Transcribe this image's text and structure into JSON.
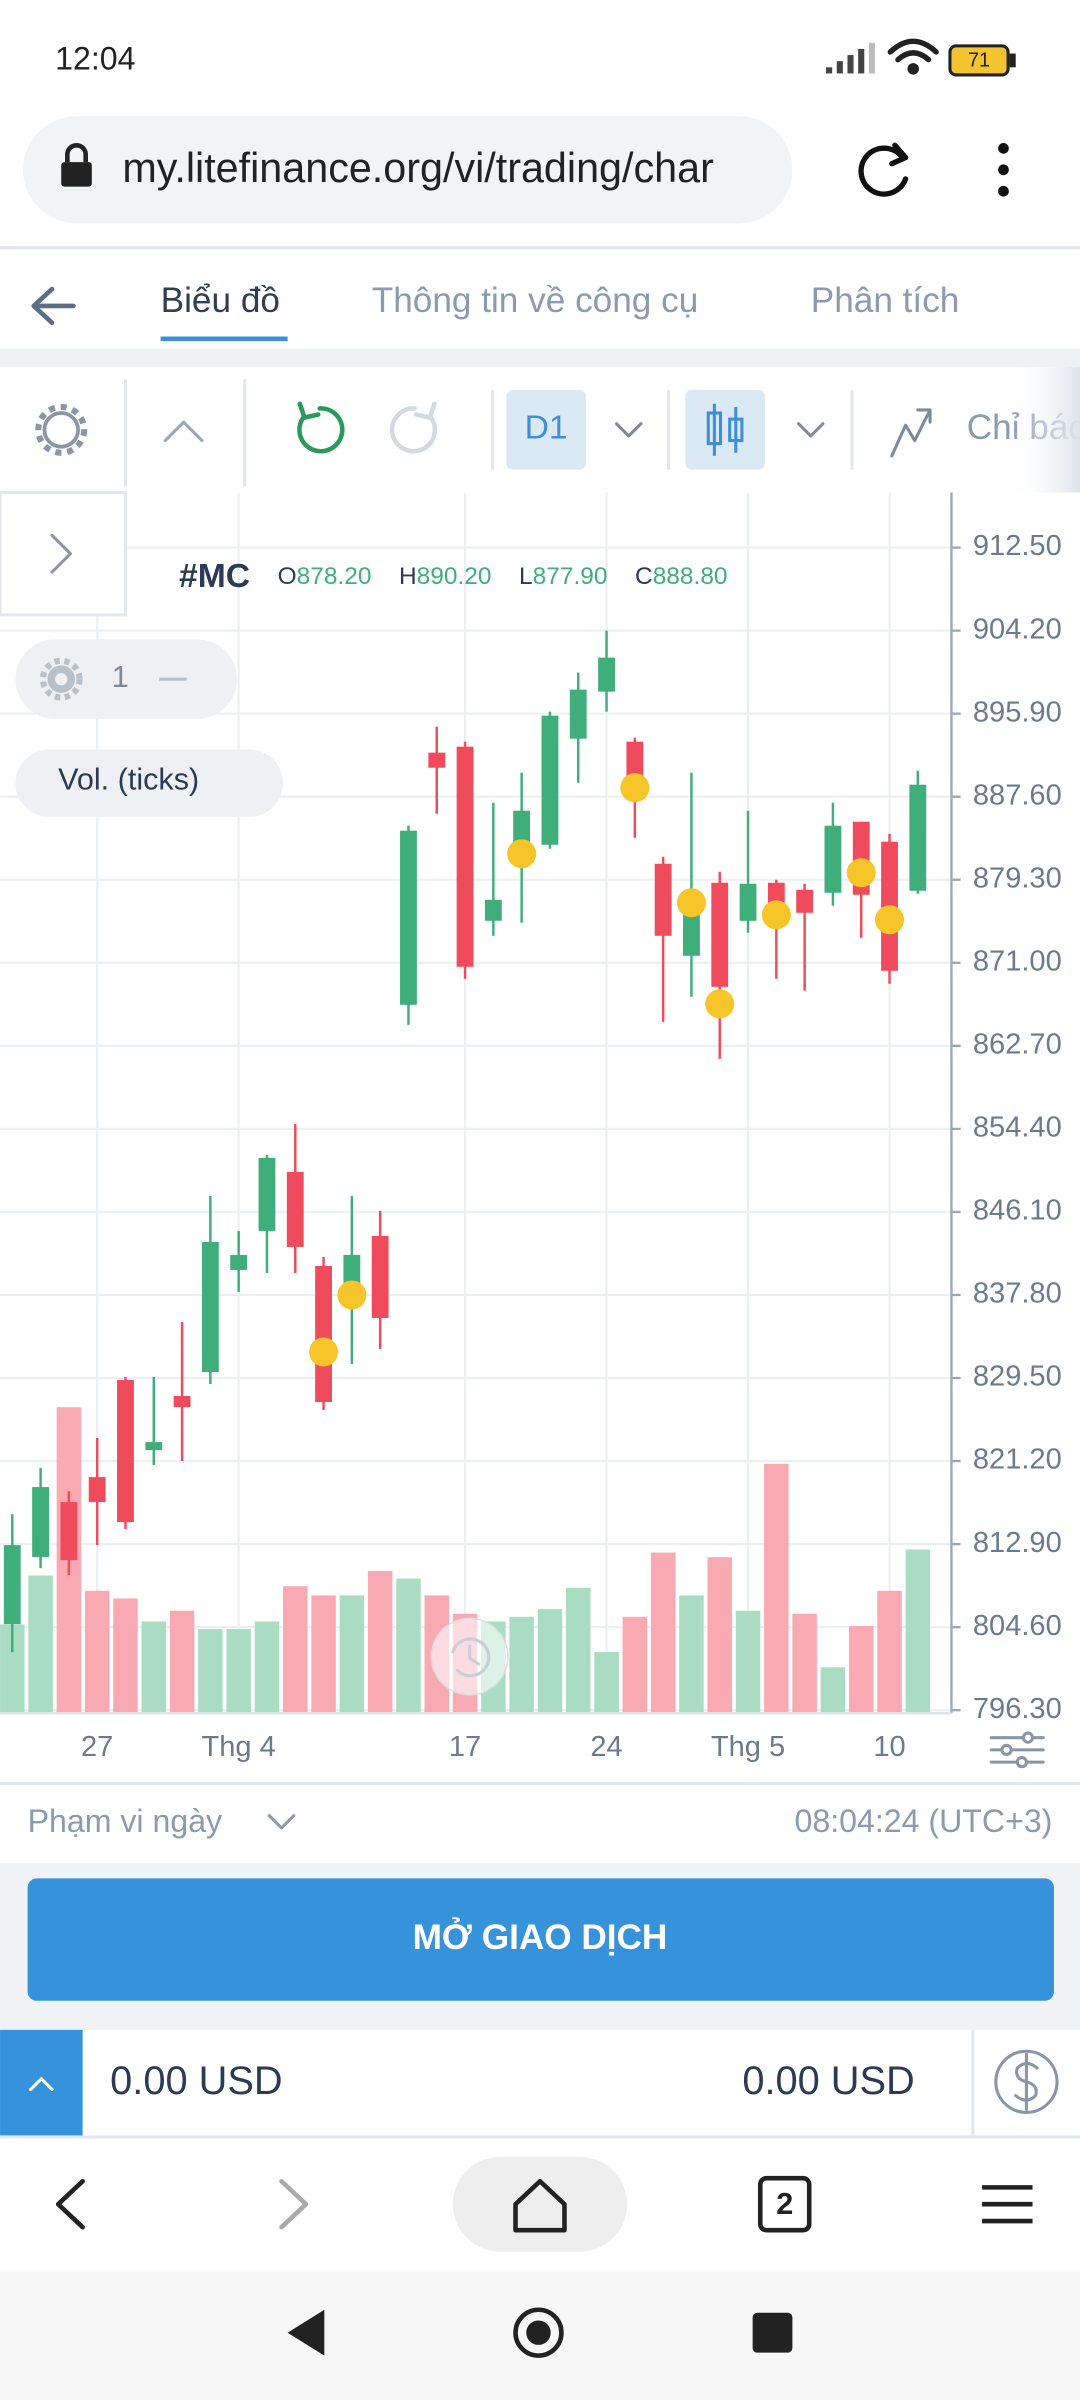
{
  "status_bar": {
    "time": "12:04",
    "battery": "71"
  },
  "browser": {
    "url": "my.litefinance.org/vi/trading/char"
  },
  "tabs": [
    "Biểu đồ",
    "Thông tin về công cụ",
    "Phân tích"
  ],
  "toolbar": {
    "timeframe": "D1",
    "indicators": "Chỉ báo"
  },
  "chart": {
    "type": "candlestick",
    "symbol": "#MC",
    "ohlc_header": [
      {
        "label": "O",
        "value": "878.20"
      },
      {
        "label": "H",
        "value": "890.20"
      },
      {
        "label": "L",
        "value": "877.90"
      },
      {
        "label": "C",
        "value": "888.80"
      }
    ],
    "pane_label": "1",
    "volume_label": "Vol. (ticks)",
    "categories": [
      null,
      null,
      null,
      "27",
      null,
      null,
      null,
      null,
      "Thg 4",
      null,
      null,
      null,
      null,
      null,
      null,
      null,
      "17",
      null,
      null,
      null,
      null,
      "24",
      null,
      null,
      null,
      null,
      "Thg 5",
      null,
      null,
      null,
      null,
      "10",
      null
    ],
    "open": [
      804.9,
      811.6,
      817.1,
      819.6,
      829.3,
      822.3,
      827.7,
      830.1,
      840.3,
      844.2,
      850.1,
      840.7,
      837.0,
      843.7,
      866.8,
      892.0,
      892.6,
      875.2,
      881.9,
      882.8,
      893.4,
      898.1,
      893.1,
      880.9,
      871.7,
      879.0,
      875.2,
      879.0,
      878.3,
      878.0,
      885.1,
      883.1,
      878.2
    ],
    "high": [
      815.9,
      820.5,
      818.2,
      823.5,
      829.6,
      829.6,
      835.1,
      847.7,
      844.2,
      851.8,
      854.9,
      841.6,
      847.7,
      846.2,
      884.7,
      894.6,
      893.1,
      887.0,
      890.0,
      896.1,
      900.0,
      904.2,
      893.5,
      881.6,
      890.0,
      880.1,
      886.2,
      879.3,
      878.9,
      887.0,
      885.1,
      883.9,
      890.2
    ],
    "low": [
      802.1,
      810.5,
      809.8,
      812.8,
      814.4,
      820.8,
      821.2,
      828.9,
      838.1,
      840.0,
      840.0,
      826.3,
      830.9,
      832.4,
      864.8,
      885.9,
      869.4,
      873.7,
      875.0,
      882.4,
      889.0,
      896.1,
      883.5,
      865.1,
      867.6,
      861.4,
      874.0,
      869.4,
      868.2,
      876.7,
      873.5,
      868.9,
      877.9
    ],
    "close": [
      812.8,
      818.6,
      811.3,
      817.1,
      815.1,
      823.1,
      826.6,
      843.1,
      841.8,
      851.5,
      842.6,
      827.1,
      841.8,
      835.5,
      884.2,
      890.5,
      870.6,
      877.3,
      886.2,
      895.7,
      898.3,
      901.5,
      889.0,
      873.7,
      877.0,
      868.6,
      878.9,
      875.5,
      876.0,
      884.7,
      877.8,
      870.2,
      888.8
    ],
    "volume": [
      58,
      90,
      200,
      80,
      75,
      60,
      67,
      55,
      55,
      60,
      83,
      77,
      77,
      93,
      88,
      77,
      65,
      60,
      63,
      68,
      82,
      40,
      63,
      105,
      77,
      102,
      67,
      163,
      65,
      30,
      57,
      80,
      107
    ],
    "volume_lim": [
      0,
      250
    ],
    "markers": [
      {
        "index": 11,
        "value": 832.1
      },
      {
        "index": 12,
        "value": 837.8
      },
      {
        "index": 18,
        "value": 881.9
      },
      {
        "index": 22,
        "value": 888.5
      },
      {
        "index": 24,
        "value": 877.0
      },
      {
        "index": 25,
        "value": 866.9
      },
      {
        "index": 27,
        "value": 875.8
      },
      {
        "index": 30,
        "value": 880.0
      },
      {
        "index": 31,
        "value": 875.3
      }
    ],
    "ylim": [
      796.0,
      918.0
    ],
    "yticks": [
      {
        "value": 912.5,
        "label": "912.50"
      },
      {
        "value": 904.2,
        "label": "904.20"
      },
      {
        "value": 895.9,
        "label": "895.90"
      },
      {
        "value": 887.6,
        "label": "887.60"
      },
      {
        "value": 879.3,
        "label": "879.30"
      },
      {
        "value": 871.0,
        "label": "871.00"
      },
      {
        "value": 862.7,
        "label": "862.70"
      },
      {
        "value": 854.4,
        "label": "854.40"
      },
      {
        "value": 846.1,
        "label": "846.10"
      },
      {
        "value": 837.8,
        "label": "837.80"
      },
      {
        "value": 829.5,
        "label": "829.50"
      },
      {
        "value": 821.2,
        "label": "821.20"
      },
      {
        "value": 812.9,
        "label": "812.90"
      },
      {
        "value": 804.6,
        "label": "804.60"
      },
      {
        "value": 796.3,
        "label": "796.30"
      }
    ],
    "grid": true,
    "up_color": "#3fae7a",
    "down_color": "#ef4b5c",
    "volume_up_color": "#a9dcc2",
    "volume_down_color": "#f8a9b2",
    "marker_color": "#f6c52a"
  },
  "footer": {
    "range": "Phạm vi ngày",
    "time": "08:04:24 (UTC+3)"
  },
  "button": "MỞ GIAO DỊCH",
  "balance": [
    "0.00 USD",
    "0.00 USD"
  ],
  "nav": {
    "tab_count": "2"
  }
}
